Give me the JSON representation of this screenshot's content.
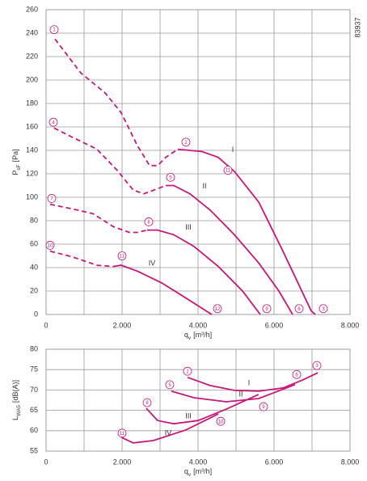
{
  "chart_data": [
    {
      "type": "line",
      "annotation": "83937",
      "y_label": {
        "main": "P",
        "sub": "sF",
        "unit": "[Pa]"
      },
      "x_label": {
        "main": "q",
        "sub": "v",
        "unit": "[m³/h]"
      },
      "xlim": [
        0,
        8000
      ],
      "xticks": [
        0,
        {
          "value": 2000,
          "label": "2.000"
        },
        {
          "value": 4000,
          "label": "4.000"
        },
        {
          "value": 6000,
          "label": "6.000"
        },
        {
          "value": 8000,
          "label": "8.000"
        }
      ],
      "xgrid": [
        1000,
        3000,
        5000,
        7000
      ],
      "ylim": [
        0,
        260
      ],
      "yticks": [
        0,
        20,
        40,
        60,
        80,
        100,
        120,
        140,
        160,
        180,
        200,
        220,
        240,
        260
      ],
      "series": [
        {
          "name": "I",
          "color": "#c8177b",
          "x": [
            3468,
            4106,
            4532,
            4957,
            5596,
            6234,
            6979,
            7085
          ],
          "values": [
            141,
            139,
            134,
            122,
            96,
            54,
            3,
            0
          ],
          "stall_x": [
            234,
            915,
            1553,
            1979,
            2404,
            2723,
            2936,
            3149,
            3468
          ],
          "stall_values": [
            235,
            206,
            189,
            172,
            144,
            127,
            127,
            134,
            141
          ]
        },
        {
          "name": "II",
          "color": "#c8177b",
          "x": [
            3149,
            3362,
            3787,
            4319,
            4957,
            5596,
            6128,
            6489
          ],
          "values": [
            110,
            110,
            103,
            89,
            68,
            44,
            20,
            0
          ],
          "stall_x": [
            213,
            702,
            1340,
            1872,
            2298,
            2574,
            2830,
            3149
          ],
          "stall_values": [
            159,
            151,
            141,
            123,
            106,
            103,
            106,
            110
          ]
        },
        {
          "name": "III",
          "color": "#c8177b",
          "x": [
            2660,
            2936,
            3362,
            3894,
            4532,
            5170,
            5638
          ],
          "values": [
            72,
            72,
            68,
            58,
            41,
            20,
            0
          ],
          "stall_x": [
            106,
            702,
            1234,
            1766,
            2191,
            2404,
            2660
          ],
          "stall_values": [
            94,
            90,
            86,
            75,
            70,
            70,
            72
          ]
        },
        {
          "name": "IV",
          "color": "#c8177b",
          "x": [
            1766,
            1979,
            2404,
            3043,
            3681,
            4362
          ],
          "values": [
            41,
            42,
            37,
            27,
            14,
            0
          ],
          "stall_x": [
            106,
            702,
            1340,
            1766
          ],
          "stall_values": [
            54,
            49,
            42,
            41
          ]
        }
      ],
      "markers": [
        {
          "label": "1",
          "x": 213,
          "y": 243
        },
        {
          "label": "2",
          "x": 3681,
          "y": 147
        },
        {
          "label": "3",
          "x": 7298,
          "y": 5
        },
        {
          "label": "4",
          "x": 191,
          "y": 164
        },
        {
          "label": "5",
          "x": 3277,
          "y": 117
        },
        {
          "label": "6",
          "x": 6660,
          "y": 5
        },
        {
          "label": "7",
          "x": 149,
          "y": 99
        },
        {
          "label": "8",
          "x": 2702,
          "y": 79
        },
        {
          "label": "9",
          "x": 5809,
          "y": 5
        },
        {
          "label": "10",
          "x": 106,
          "y": 59
        },
        {
          "label": "11",
          "x": 2000,
          "y": 50
        },
        {
          "label": "12",
          "x": 4511,
          "y": 5
        },
        {
          "label": "11",
          "x": 4787,
          "y": 123
        }
      ]
    },
    {
      "type": "line",
      "y_label": {
        "main": "L",
        "sub": "WA5",
        "unit": "[dB(A)]"
      },
      "x_label": {
        "main": "q",
        "sub": "v",
        "unit": "[m³/h]"
      },
      "xlim": [
        0,
        8000
      ],
      "xticks": [
        0,
        {
          "value": 2000,
          "label": "2.000"
        },
        {
          "value": 4000,
          "label": "4.000"
        },
        {
          "value": 6000,
          "label": "6.000"
        },
        {
          "value": 8000,
          "label": "8.000"
        }
      ],
      "xgrid": [
        1000,
        3000,
        5000,
        7000
      ],
      "ylim": [
        55,
        80
      ],
      "yticks": [
        55,
        60,
        65,
        70,
        75,
        80
      ],
      "series": [
        {
          "name": "I",
          "color": "#c8177b",
          "x": [
            3723,
            4319,
            4957,
            5596,
            6234,
            6766,
            7149
          ],
          "values": [
            73.1,
            71.1,
            69.9,
            69.7,
            70.5,
            72.5,
            74.2
          ]
        },
        {
          "name": "II",
          "color": "#c8177b",
          "x": [
            3298,
            3894,
            4745,
            5596,
            6553
          ],
          "values": [
            69.7,
            68.1,
            67.1,
            67.9,
            71.3
          ]
        },
        {
          "name": "III",
          "color": "#c8177b",
          "x": [
            2638,
            2936,
            3362,
            4000,
            4745,
            5596
          ],
          "values": [
            65.5,
            62.5,
            61.7,
            62.5,
            65.3,
            68.9
          ]
        },
        {
          "name": "IV",
          "color": "#c8177b",
          "x": [
            1979,
            2298,
            2830,
            3681,
            4532
          ],
          "values": [
            58.4,
            57.0,
            57.6,
            60.2,
            64.1
          ]
        }
      ],
      "markers": [
        {
          "label": "2",
          "x": 3723,
          "y": 74.6
        },
        {
          "label": "3",
          "x": 7128,
          "y": 76.0
        },
        {
          "label": "5",
          "x": 3255,
          "y": 71.3
        },
        {
          "label": "6",
          "x": 6596,
          "y": 73.8
        },
        {
          "label": "8",
          "x": 2660,
          "y": 66.9
        },
        {
          "label": "9",
          "x": 5723,
          "y": 65.9
        },
        {
          "label": "10",
          "x": 4596,
          "y": 62.3
        },
        {
          "label": "11",
          "x": 2000,
          "y": 59.4
        }
      ]
    }
  ]
}
